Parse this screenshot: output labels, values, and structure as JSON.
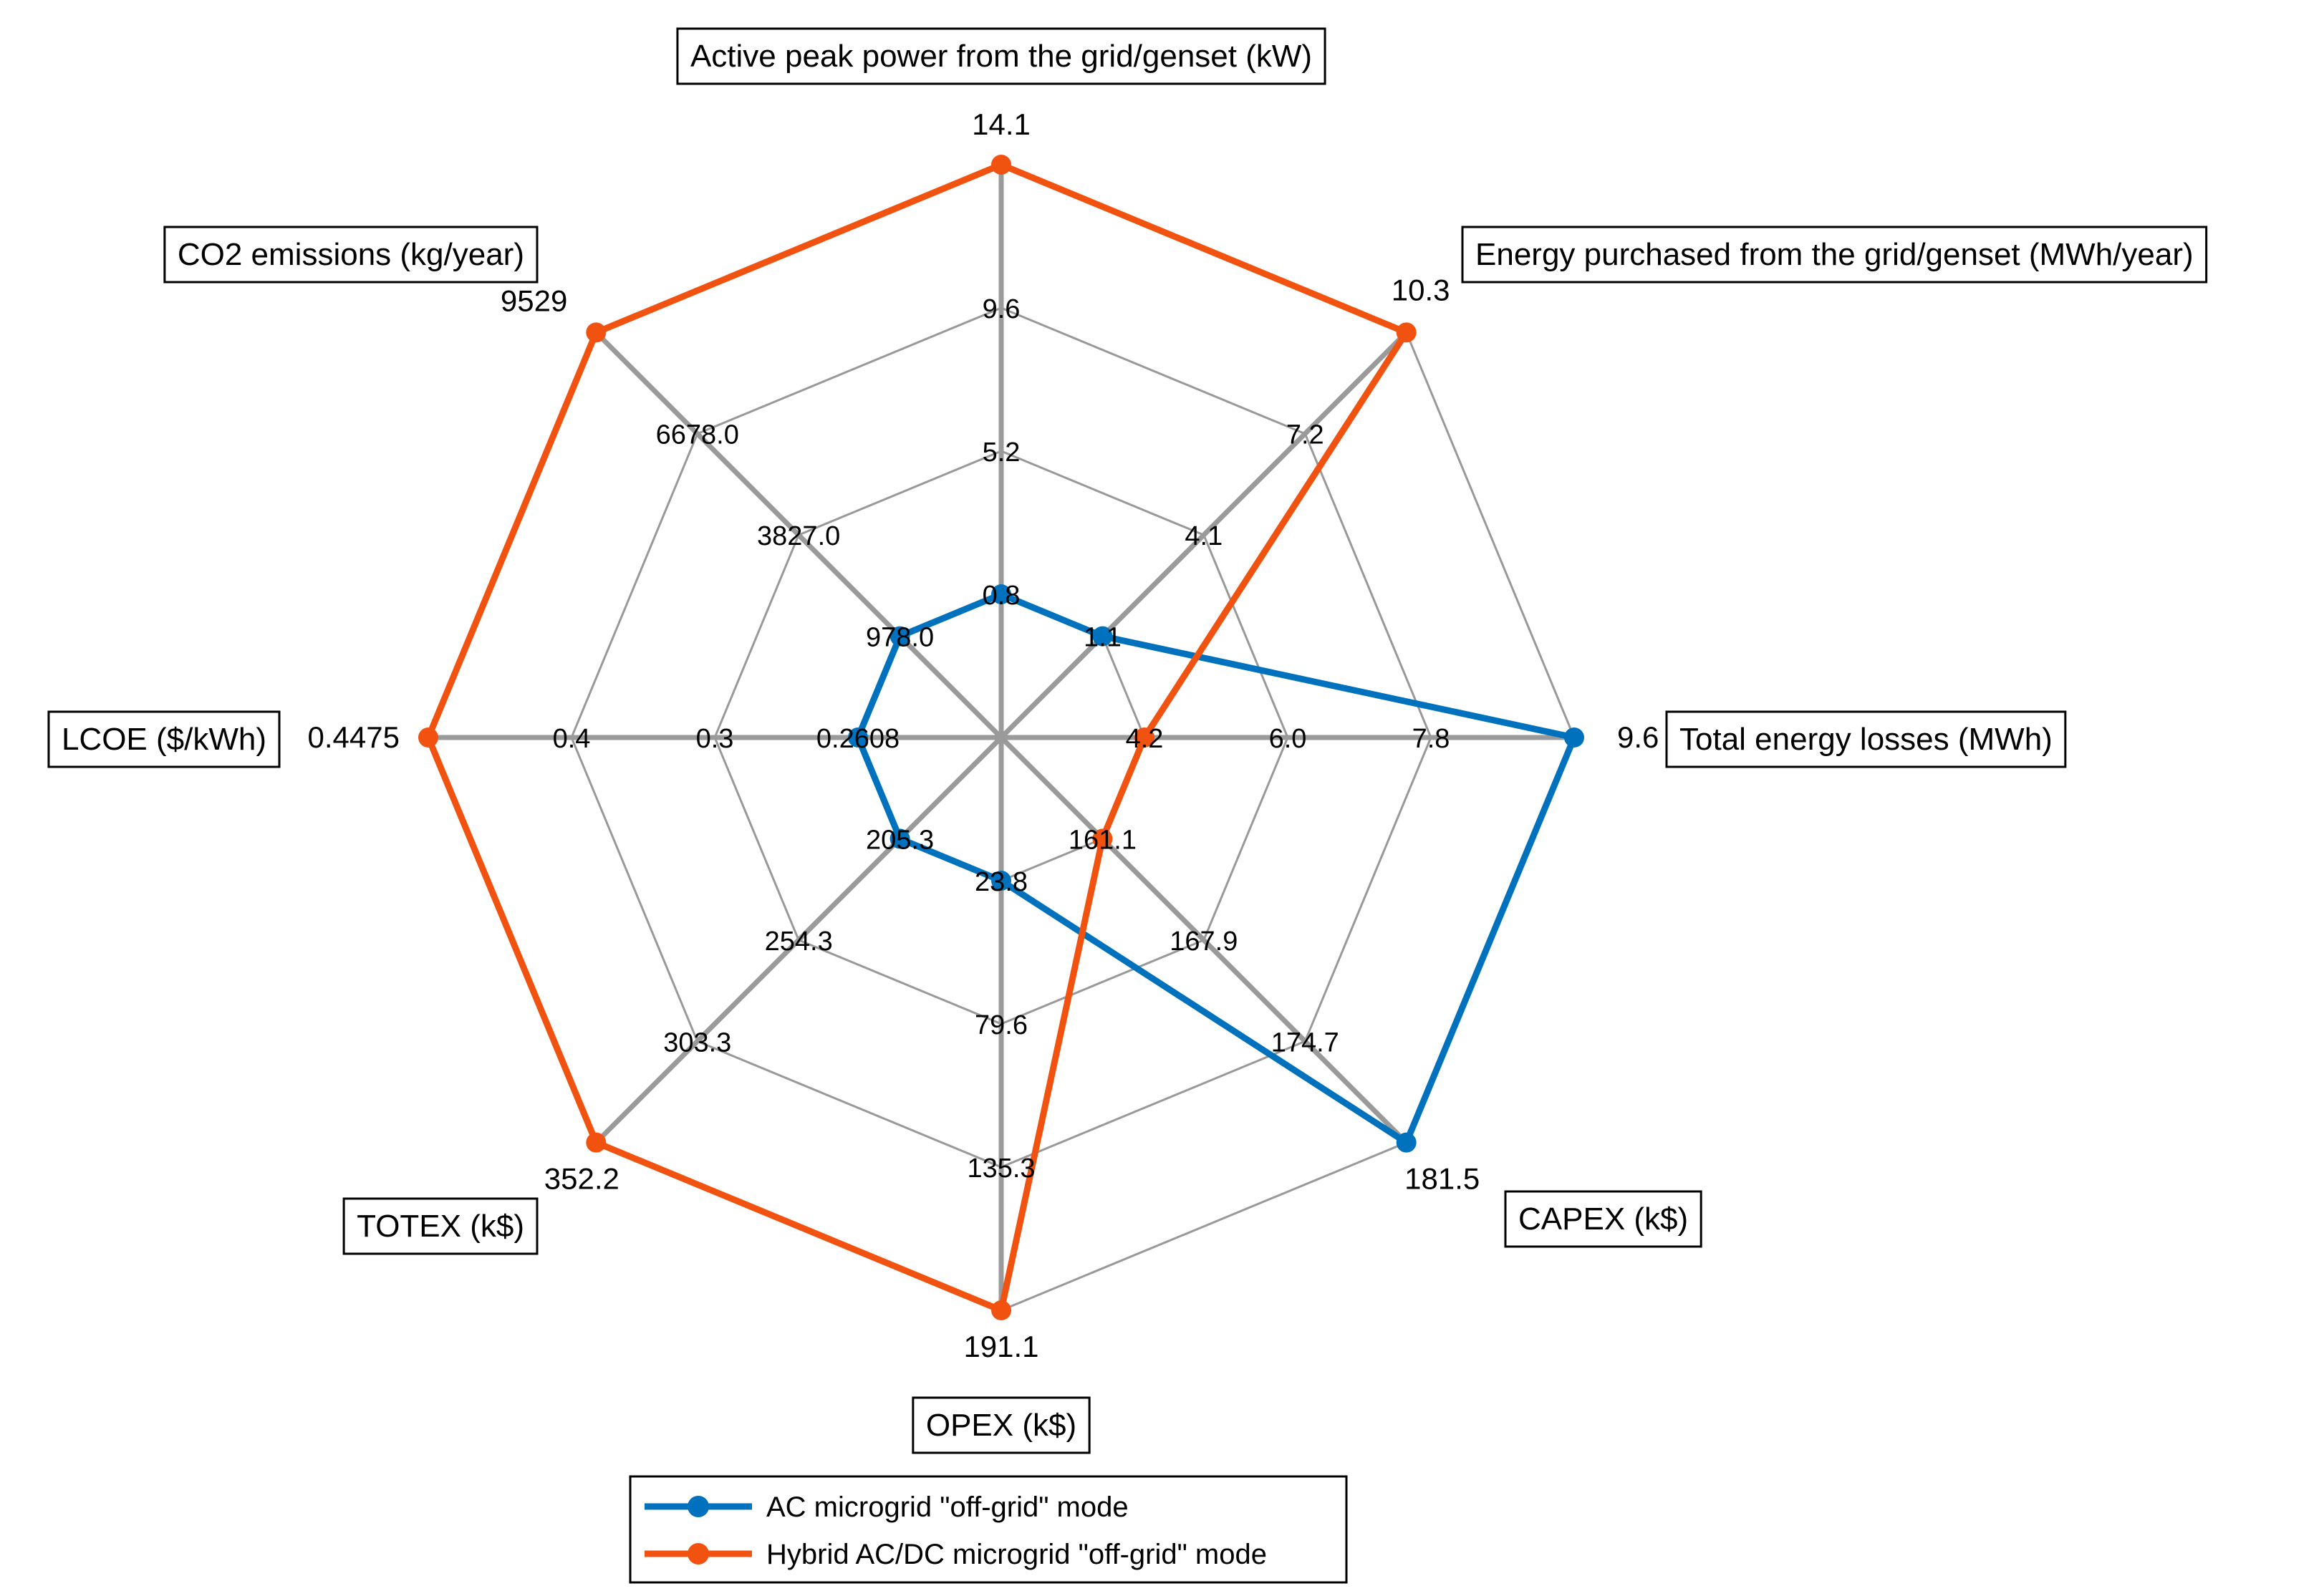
{
  "chart_data": {
    "type": "radar",
    "axes": [
      {
        "label": "Active peak power from the grid/genset (kW)",
        "max_label": "14.1",
        "ticks": [
          "0.8",
          "5.2",
          "9.6"
        ]
      },
      {
        "label": "Energy purchased from the grid/genset (MWh/year)",
        "max_label": "10.3",
        "ticks": [
          "1.1",
          "4.1",
          "7.2"
        ]
      },
      {
        "label": "Total energy losses (MWh)",
        "max_label": "9.6",
        "ticks": [
          "4.2",
          "6.0",
          "7.8"
        ]
      },
      {
        "label": "CAPEX (k$)",
        "max_label": "181.5",
        "ticks": [
          "161.1",
          "167.9",
          "174.7"
        ]
      },
      {
        "label": "OPEX (k$)",
        "max_label": "191.1",
        "ticks": [
          "23.8",
          "79.6",
          "135.3"
        ]
      },
      {
        "label": "TOTEX (k$)",
        "max_label": "352.2",
        "ticks": [
          "205.3",
          "254.3",
          "303.3"
        ]
      },
      {
        "label": "LCOE ($/kWh)",
        "max_label": "0.4475",
        "ticks": [
          "0.2608",
          "0.3",
          "0.4"
        ]
      },
      {
        "label": "CO2 emissions (kg/year)",
        "max_label": "9529",
        "ticks": [
          "978.0",
          "3827.0",
          "6678.0"
        ]
      }
    ],
    "series": [
      {
        "name": "AC microgrid \"off-grid\" mode",
        "color": "#0072BD",
        "values": [
          0.25,
          0.25,
          1.0,
          1.0,
          0.25,
          0.25,
          0.25,
          0.25
        ]
      },
      {
        "name": "Hybrid AC/DC microgrid \"off-grid\" mode",
        "color": "#F2520F",
        "values": [
          1.0,
          1.0,
          0.25,
          0.25,
          1.0,
          1.0,
          1.0,
          1.0
        ]
      }
    ],
    "rings": [
      0.25,
      0.5,
      0.75,
      1.0
    ],
    "legend_position": "bottom-center"
  }
}
